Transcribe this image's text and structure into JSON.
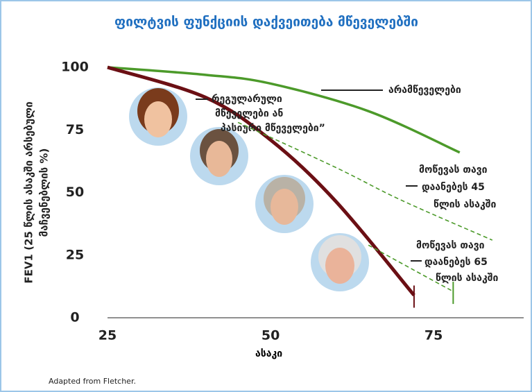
{
  "chart_data": {
    "type": "line",
    "title": "ფილტვის ფუნქციის დაქვეითება მწეველებში",
    "xlabel": "ასაკი",
    "ylabel": [
      "FEV1 (25 წლის ასაკში არსებული",
      "მაჩვენებლის %)"
    ],
    "xlim": [
      25,
      87
    ],
    "xticks": [
      25,
      50,
      75
    ],
    "ylim": [
      0,
      100
    ],
    "yticks": [
      0,
      25,
      50,
      75,
      100
    ],
    "series": [
      {
        "label": [
          "არამწეველები"
        ],
        "color": "#4c9a2a",
        "dashed": false,
        "x": [
          25,
          40,
          50,
          65,
          79
        ],
        "values": [
          100,
          97,
          93.5,
          82.5,
          66
        ]
      },
      {
        "label": [
          "რეგულარული",
          "მწეველები ან",
          "პასიური მწეველები”"
        ],
        "color": "#6b0f14",
        "dashed": false,
        "x": [
          25,
          40,
          50,
          60,
          72
        ],
        "values": [
          100,
          88,
          71,
          46.5,
          9
        ]
      },
      {
        "label": [
          "მოწევას თავი",
          "დაანებეს 45",
          "წლის ასაკში"
        ],
        "color": "#4c9a2a",
        "dashed": true,
        "x": [
          45,
          60,
          70,
          84
        ],
        "values": [
          78,
          60,
          47,
          31
        ]
      },
      {
        "label": [
          "მოწევას თავი",
          "დაანებეს 65",
          "წლის ასაკში"
        ],
        "color": "#4c9a2a",
        "dashed": true,
        "x": [
          65,
          72,
          78
        ],
        "values": [
          29,
          19,
          10.5
        ]
      }
    ],
    "footnote": "Adapted from Fletcher."
  }
}
